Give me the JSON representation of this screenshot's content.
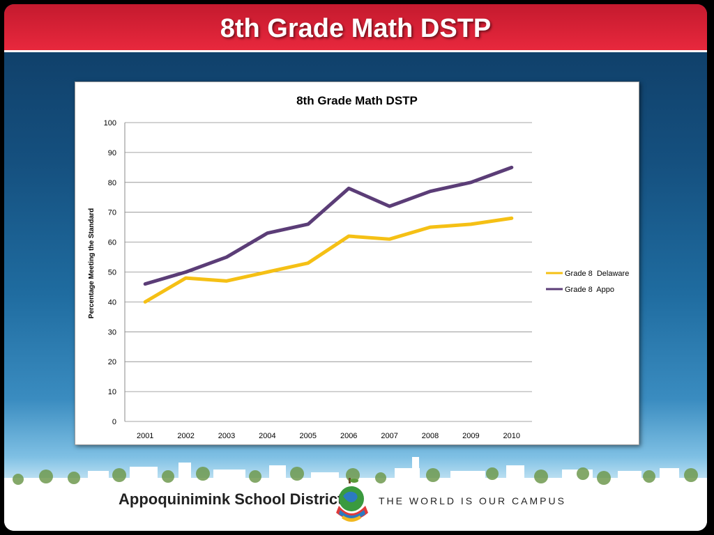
{
  "slide": {
    "title": "8th Grade Math DSTP"
  },
  "footer": {
    "district_name": "Appoquinimink School District",
    "tagline": "THE WORLD IS OUR CAMPUS"
  },
  "colors": {
    "header_red": "#d8202f",
    "series_delaware": "#f5c015",
    "series_appo": "#5b3d77"
  },
  "chart_data": {
    "type": "line",
    "title": "8th Grade Math DSTP",
    "xlabel": "",
    "ylabel": "Percentage Meeting the Standard",
    "categories": [
      "2001",
      "2002",
      "2003",
      "2004",
      "2005",
      "2006",
      "2007",
      "2008",
      "2009",
      "2010"
    ],
    "ylim": [
      0,
      100
    ],
    "yticks": [
      0,
      10,
      20,
      30,
      40,
      50,
      60,
      70,
      80,
      90,
      100
    ],
    "grid": true,
    "legend_position": "right",
    "series": [
      {
        "name": "Grade 8  Delaware",
        "color": "#f5c015",
        "values": [
          40,
          48,
          47,
          50,
          53,
          62,
          61,
          65,
          66,
          68
        ]
      },
      {
        "name": "Grade 8  Appo",
        "color": "#5b3d77",
        "values": [
          46,
          50,
          55,
          63,
          66,
          78,
          72,
          77,
          80,
          85
        ]
      }
    ]
  }
}
